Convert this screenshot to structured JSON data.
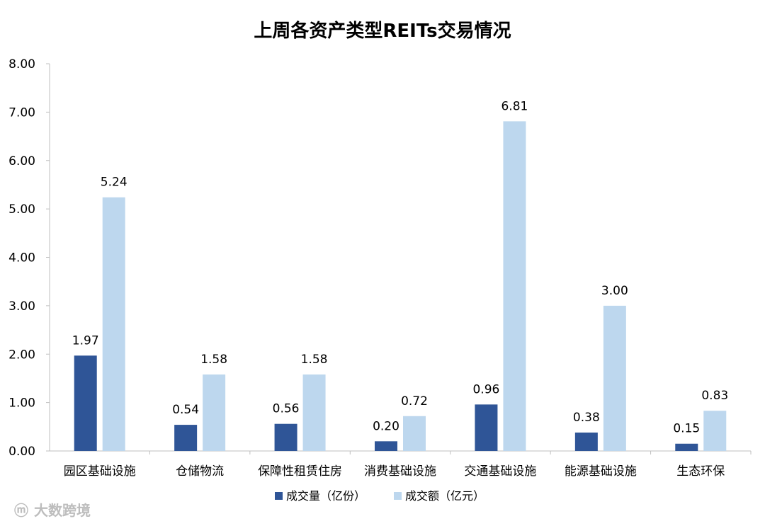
{
  "chart_data": {
    "type": "bar",
    "title": "上周各资产类型REITs交易情况",
    "xlabel": "",
    "ylabel": "",
    "categories": [
      "园区基础设施",
      "仓储物流",
      "保障性租赁住房",
      "消费基础设施",
      "交通基础设施",
      "能源基础设施",
      "生态环保"
    ],
    "series": [
      {
        "name": "成交量（亿份）",
        "color": "#2f5597",
        "values": [
          1.97,
          0.54,
          0.56,
          0.2,
          0.96,
          0.38,
          0.15
        ],
        "labels": [
          "1.97",
          "0.54",
          "0.56",
          "0.20",
          "0.96",
          "0.38",
          "0.15"
        ]
      },
      {
        "name": "成交额（亿元）",
        "color": "#bdd7ee",
        "values": [
          5.24,
          1.58,
          1.58,
          0.72,
          6.81,
          3.0,
          0.83
        ],
        "labels": [
          "5.24",
          "1.58",
          "1.58",
          "0.72",
          "6.81",
          "3.00",
          "0.83"
        ]
      }
    ],
    "ylim": [
      0,
      8
    ],
    "yticks": [
      "0.00",
      "1.00",
      "2.00",
      "3.00",
      "4.00",
      "5.00",
      "6.00",
      "7.00",
      "8.00"
    ],
    "grid": false,
    "legend_position": "bottom"
  },
  "watermark": "大数跨境"
}
